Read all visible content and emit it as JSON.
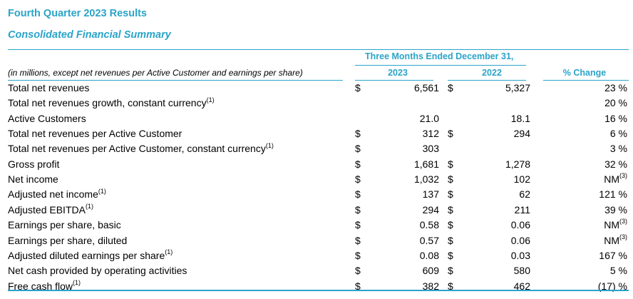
{
  "header": {
    "title": "Fourth Quarter 2023 Results",
    "subtitle": "Consolidated Financial Summary",
    "period": "Three Months Ended December 31,",
    "note": "(in millions, except net revenues per Active Customer and earnings per share)",
    "col_2023": "2023",
    "col_2022": "2022",
    "col_change": "% Change"
  },
  "rows": [
    {
      "label": "Total net revenues",
      "sup": "",
      "d1": "$",
      "v2023": "6,561",
      "d2": "$",
      "v2022": "5,327",
      "change": "23 %",
      "change_sup": ""
    },
    {
      "label": "Total net revenues growth, constant currency",
      "sup": "(1)",
      "d1": "",
      "v2023": "",
      "d2": "",
      "v2022": "",
      "change": "20 %",
      "change_sup": ""
    },
    {
      "label": "Active Customers",
      "sup": "",
      "d1": "",
      "v2023": "21.0",
      "d2": "",
      "v2022": "18.1",
      "change": "16 %",
      "change_sup": ""
    },
    {
      "label": "Total net revenues per Active Customer",
      "sup": "",
      "d1": "$",
      "v2023": "312",
      "d2": "$",
      "v2022": "294",
      "change": "6 %",
      "change_sup": ""
    },
    {
      "label": "Total net revenues per Active Customer, constant currency",
      "sup": "(1)",
      "d1": "$",
      "v2023": "303",
      "d2": "",
      "v2022": "",
      "change": "3 %",
      "change_sup": ""
    },
    {
      "label": "Gross profit",
      "sup": "",
      "d1": "$",
      "v2023": "1,681",
      "d2": "$",
      "v2022": "1,278",
      "change": "32 %",
      "change_sup": ""
    },
    {
      "label": "Net income",
      "sup": "",
      "d1": "$",
      "v2023": "1,032",
      "d2": "$",
      "v2022": "102",
      "change": "NM",
      "change_sup": "(3)"
    },
    {
      "label": "Adjusted net income",
      "sup": "(1)",
      "d1": "$",
      "v2023": "137",
      "d2": "$",
      "v2022": "62",
      "change": "121 %",
      "change_sup": ""
    },
    {
      "label": "Adjusted EBITDA",
      "sup": "(1)",
      "d1": "$",
      "v2023": "294",
      "d2": "$",
      "v2022": "211",
      "change": "39 %",
      "change_sup": ""
    },
    {
      "label": "Earnings per share, basic",
      "sup": "",
      "d1": "$",
      "v2023": "0.58",
      "d2": "$",
      "v2022": "0.06",
      "change": "NM",
      "change_sup": "(3)"
    },
    {
      "label": "Earnings per share, diluted",
      "sup": "",
      "d1": "$",
      "v2023": "0.57",
      "d2": "$",
      "v2022": "0.06",
      "change": "NM",
      "change_sup": "(3)"
    },
    {
      "label": "Adjusted diluted earnings per share",
      "sup": "(1)",
      "d1": "$",
      "v2023": "0.08",
      "d2": "$",
      "v2022": "0.03",
      "change": "167 %",
      "change_sup": ""
    },
    {
      "label": "Net cash provided by operating activities",
      "sup": "",
      "d1": "$",
      "v2023": "609",
      "d2": "$",
      "v2022": "580",
      "change": "5 %",
      "change_sup": ""
    },
    {
      "label": "Free cash flow",
      "sup": "(1)",
      "d1": "$",
      "v2023": "382",
      "d2": "$",
      "v2022": "462",
      "change": "(17) %",
      "change_sup": ""
    }
  ],
  "colors": {
    "accent": "#2aa4c9"
  }
}
